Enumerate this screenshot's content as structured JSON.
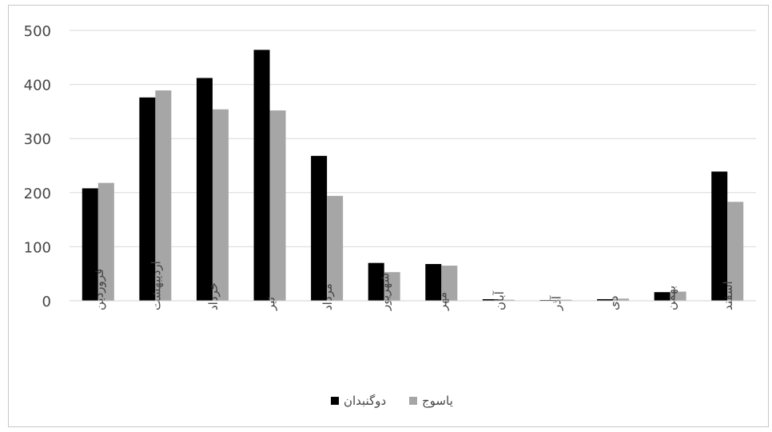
{
  "chart_data": {
    "type": "bar",
    "categories": [
      "فروردین",
      "اردیبهشت",
      "خرداد",
      "تیر",
      "مرداد",
      "شهریور",
      "مهر",
      "آبان",
      "آذر",
      "دی",
      "بهمن",
      "اسفند"
    ],
    "series": [
      {
        "name": "دوگنبدان",
        "color": "#000000",
        "values": [
          208,
          376,
          412,
          464,
          268,
          70,
          68,
          3,
          1,
          3,
          16,
          239
        ]
      },
      {
        "name": "یاسوج",
        "color": "#a6a6a6",
        "values": [
          218,
          389,
          354,
          352,
          194,
          53,
          65,
          2,
          2,
          4,
          17,
          183
        ]
      }
    ],
    "ylim": [
      0,
      500
    ],
    "yticks": [
      "0",
      "100",
      "200",
      "300",
      "400",
      "500"
    ],
    "grid": true,
    "legend": "bottom"
  }
}
